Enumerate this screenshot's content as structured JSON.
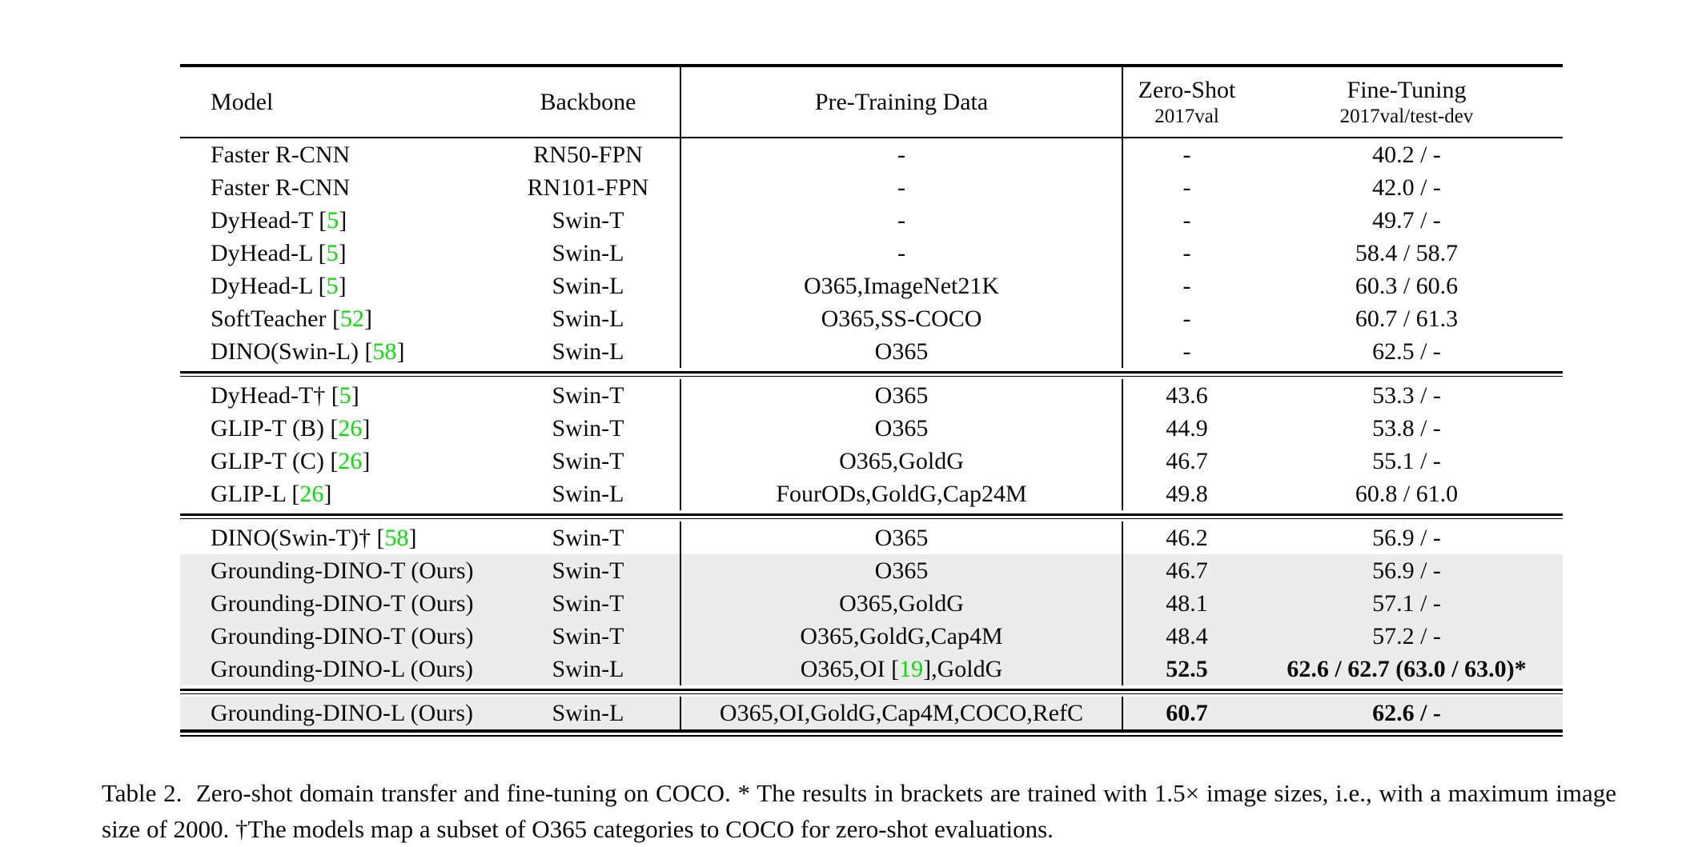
{
  "colors": {
    "citation_green": "#00e400",
    "row_shade": "#ececec",
    "rule_black": "#000000"
  },
  "table": {
    "columns": [
      {
        "key": "model",
        "label": "Model"
      },
      {
        "key": "backbone",
        "label": "Backbone"
      },
      {
        "key": "pretrain",
        "label": "Pre-Training Data"
      },
      {
        "key": "zeroshot",
        "label": "Zero-Shot",
        "sub": "2017val"
      },
      {
        "key": "finetune",
        "label": "Fine-Tuning",
        "sub": "2017val/test-dev"
      }
    ],
    "sections": [
      {
        "rows": [
          {
            "model": "Faster R-CNN",
            "backbone": "RN50-FPN",
            "pretrain": "-",
            "zeroshot": "-",
            "finetune": "40.2 / -"
          },
          {
            "model": "Faster R-CNN",
            "backbone": "RN101-FPN",
            "pretrain": "-",
            "zeroshot": "-",
            "finetune": "42.0 / -"
          },
          {
            "model": "DyHead-T [5]",
            "backbone": "Swin-T",
            "pretrain": "-",
            "zeroshot": "-",
            "finetune": "49.7 / -"
          },
          {
            "model": "DyHead-L [5]",
            "backbone": "Swin-L",
            "pretrain": "-",
            "zeroshot": "-",
            "finetune": "58.4 / 58.7"
          },
          {
            "model": "DyHead-L [5]",
            "backbone": "Swin-L",
            "pretrain": "O365,ImageNet21K",
            "zeroshot": "-",
            "finetune": "60.3 / 60.6"
          },
          {
            "model": "SoftTeacher [52]",
            "backbone": "Swin-L",
            "pretrain": "O365,SS-COCO",
            "zeroshot": "-",
            "finetune": "60.7 / 61.3"
          },
          {
            "model": "DINO(Swin-L) [58]",
            "backbone": "Swin-L",
            "pretrain": "O365",
            "zeroshot": "-",
            "finetune": "62.5 / -"
          }
        ]
      },
      {
        "rows": [
          {
            "model": "DyHead-T† [5]",
            "backbone": "Swin-T",
            "pretrain": "O365",
            "zeroshot": "43.6",
            "finetune": "53.3 / -"
          },
          {
            "model": "GLIP-T (B) [26]",
            "backbone": "Swin-T",
            "pretrain": "O365",
            "zeroshot": "44.9",
            "finetune": "53.8 / -"
          },
          {
            "model": "GLIP-T (C) [26]",
            "backbone": "Swin-T",
            "pretrain": "O365,GoldG",
            "zeroshot": "46.7",
            "finetune": "55.1 / -"
          },
          {
            "model": "GLIP-L [26]",
            "backbone": "Swin-L",
            "pretrain": "FourODs,GoldG,Cap24M",
            "zeroshot": "49.8",
            "finetune": "60.8 / 61.0"
          }
        ]
      },
      {
        "rows": [
          {
            "model": "DINO(Swin-T)† [58]",
            "backbone": "Swin-T",
            "pretrain": "O365",
            "zeroshot": "46.2",
            "finetune": "56.9 / -"
          },
          {
            "model": "Grounding-DINO-T (Ours)",
            "backbone": "Swin-T",
            "pretrain": "O365",
            "zeroshot": "46.7",
            "finetune": "56.9 / -",
            "shaded": true
          },
          {
            "model": "Grounding-DINO-T (Ours)",
            "backbone": "Swin-T",
            "pretrain": "O365,GoldG",
            "zeroshot": "48.1",
            "finetune": "57.1 / -",
            "shaded": true
          },
          {
            "model": "Grounding-DINO-T (Ours)",
            "backbone": "Swin-T",
            "pretrain": "O365,GoldG,Cap4M",
            "zeroshot": "48.4",
            "finetune": "57.2 / -",
            "shaded": true
          },
          {
            "model": "Grounding-DINO-L (Ours)",
            "backbone": "Swin-L",
            "pretrain": "O365,OI [19],GoldG",
            "zeroshot": "52.5",
            "finetune": "62.6 / 62.7 (63.0 / 63.0)*",
            "shaded": true,
            "bold_metrics": true
          }
        ]
      },
      {
        "rows": [
          {
            "model": "Grounding-DINO-L (Ours)",
            "backbone": "Swin-L",
            "pretrain": "O365,OI,GoldG,Cap4M,COCO,RefC",
            "zeroshot": "60.7",
            "finetune": "62.6 / -",
            "shaded": true,
            "bold_metrics": true
          }
        ]
      }
    ]
  },
  "caption": {
    "text": "Table 2.  Zero-shot domain transfer and fine-tuning on COCO. * The results in brackets are trained with 1.5× image sizes, i.e., with a maximum image size of 2000. †The models map a subset of O365 categories to COCO for zero-shot evaluations."
  }
}
